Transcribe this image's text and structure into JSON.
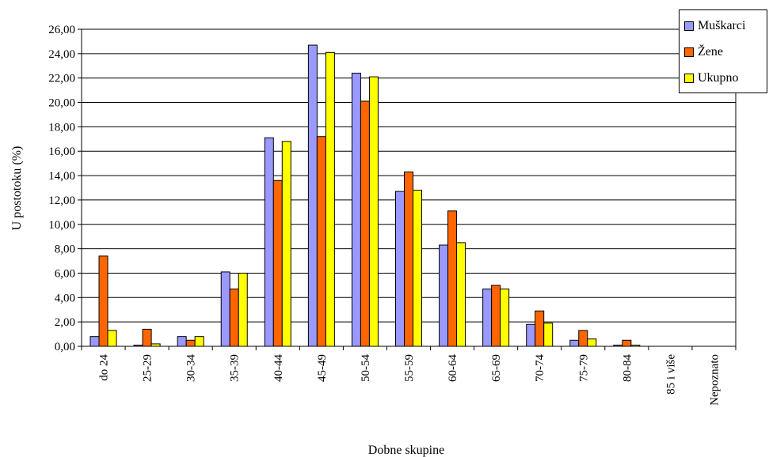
{
  "chart_data": {
    "type": "bar",
    "xlabel": "Dobne skupine",
    "ylabel": "U postotoku (%)",
    "ylim": [
      0,
      26
    ],
    "ytick_step": 2,
    "yticks": [
      "0,00",
      "2,00",
      "4,00",
      "6,00",
      "8,00",
      "10,00",
      "12,00",
      "14,00",
      "16,00",
      "18,00",
      "20,00",
      "22,00",
      "24,00",
      "26,00"
    ],
    "grid": true,
    "legend_position": "top-right",
    "categories": [
      "do 24",
      "25-29",
      "30-34",
      "35-39",
      "40-44",
      "45-49",
      "50-54",
      "55-59",
      "60-64",
      "65-69",
      "70-74",
      "75-79",
      "80-84",
      "85 i više",
      "Nepoznato"
    ],
    "series": [
      {
        "name": "Muškarci",
        "color": "#9999ff",
        "values": [
          0.8,
          0.1,
          0.8,
          6.1,
          17.1,
          24.7,
          22.4,
          12.7,
          8.3,
          4.7,
          1.8,
          0.5,
          0.1,
          0,
          0
        ]
      },
      {
        "name": "Žene",
        "color": "#ff6600",
        "values": [
          7.4,
          1.4,
          0.5,
          4.7,
          13.6,
          17.2,
          20.1,
          14.3,
          11.1,
          5.0,
          2.9,
          1.3,
          0.5,
          0,
          0
        ]
      },
      {
        "name": "Ukupno",
        "color": "#ffff00",
        "values": [
          1.3,
          0.2,
          0.8,
          6.0,
          16.8,
          24.1,
          22.1,
          12.8,
          8.5,
          4.7,
          1.9,
          0.6,
          0.1,
          0,
          0
        ]
      }
    ]
  }
}
